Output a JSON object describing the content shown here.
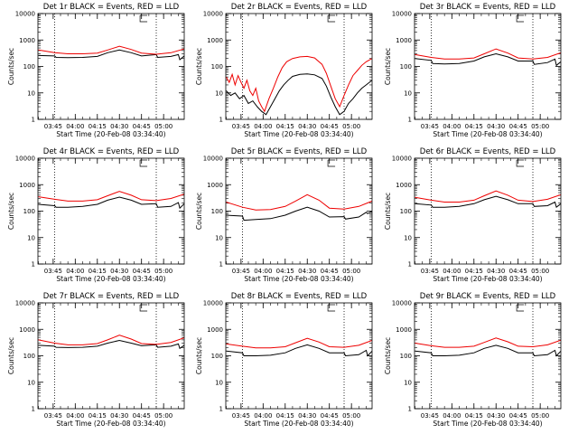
{
  "chart_data": [
    {
      "type": "line",
      "title": "Det 1r BLACK = Events, RED = LLD",
      "xlabel": "Start Time (20-Feb-08 03:34:40)",
      "ylabel": "Counts/sec",
      "y_scale": "log",
      "ylim": [
        1,
        10000
      ],
      "xlim": [
        "03:34:40",
        "05:14:00"
      ],
      "x_ticks": [
        "03:45",
        "04:00",
        "04:15",
        "04:30",
        "04:45",
        "05:00"
      ],
      "y_ticks": [
        "1",
        "10",
        "100",
        "1000",
        "10000"
      ],
      "markers": [
        "03:46",
        "04:55"
      ],
      "series": [
        {
          "color": "#000000",
          "x": [
            "03:35",
            "03:46",
            "03:47",
            "03:55",
            "04:05",
            "04:15",
            "04:22",
            "04:30",
            "04:38",
            "04:45",
            "04:55",
            "04:56",
            "05:05",
            "05:10",
            "05:11",
            "05:14"
          ],
          "y": [
            260,
            250,
            220,
            215,
            220,
            240,
            330,
            420,
            330,
            250,
            280,
            220,
            240,
            280,
            180,
            250
          ]
        },
        {
          "color": "#ee0000",
          "x": [
            "03:35",
            "03:46",
            "03:55",
            "04:05",
            "04:15",
            "04:22",
            "04:30",
            "04:38",
            "04:45",
            "04:55",
            "05:05",
            "05:14"
          ],
          "y": [
            420,
            330,
            300,
            300,
            320,
            420,
            580,
            440,
            320,
            290,
            330,
            460
          ]
        }
      ]
    },
    {
      "type": "line",
      "title": "Det 2r BLACK = Events, RED = LLD",
      "xlabel": "Start Time (20-Feb-08 03:34:40)",
      "ylabel": "Counts/sec",
      "y_scale": "log",
      "ylim": [
        1,
        10000
      ],
      "xlim": [
        "03:34:40",
        "05:14:00"
      ],
      "x_ticks": [
        "03:45",
        "04:00",
        "04:15",
        "04:30",
        "04:45",
        "05:00"
      ],
      "y_ticks": [
        "1",
        "10",
        "100",
        "1000",
        "10000"
      ],
      "markers": [
        "03:46",
        "04:55"
      ],
      "series": [
        {
          "color": "#000000",
          "x": [
            "03:35",
            "03:38",
            "03:41",
            "03:44",
            "03:47",
            "03:50",
            "03:53",
            "03:56",
            "03:59",
            "04:02",
            "04:05",
            "04:08",
            "04:11",
            "04:14",
            "04:17",
            "04:20",
            "04:25",
            "04:30",
            "04:35",
            "04:40",
            "04:43",
            "04:46",
            "04:49",
            "04:52",
            "04:55",
            "04:58",
            "05:01",
            "05:04",
            "05:07",
            "05:10",
            "05:14"
          ],
          "y": [
            12,
            8,
            10,
            6,
            8,
            4,
            5,
            3,
            2,
            1.5,
            3,
            6,
            12,
            20,
            30,
            42,
            50,
            52,
            48,
            35,
            18,
            7,
            3,
            1.5,
            2,
            4,
            6,
            10,
            15,
            20,
            30
          ]
        },
        {
          "color": "#ee0000",
          "x": [
            "03:35",
            "03:37",
            "03:39",
            "03:41",
            "03:43",
            "03:45",
            "03:47",
            "03:49",
            "03:51",
            "03:53",
            "03:55",
            "03:57",
            "03:59",
            "04:01",
            "04:04",
            "04:07",
            "04:10",
            "04:13",
            "04:16",
            "04:20",
            "04:25",
            "04:30",
            "04:35",
            "04:40",
            "04:43",
            "04:46",
            "04:49",
            "04:52",
            "04:55",
            "04:58",
            "05:01",
            "05:04",
            "05:07",
            "05:10",
            "05:14"
          ],
          "y": [
            40,
            25,
            50,
            20,
            45,
            25,
            15,
            30,
            12,
            8,
            15,
            5,
            3,
            2,
            6,
            15,
            40,
            90,
            150,
            200,
            230,
            240,
            210,
            120,
            55,
            18,
            6,
            3,
            8,
            20,
            45,
            70,
            110,
            150,
            200
          ]
        }
      ]
    },
    {
      "type": "line",
      "title": "Det 3r BLACK = Events, RED = LLD",
      "xlabel": "Start Time (20-Feb-08 03:34:40)",
      "ylabel": "Counts/sec",
      "y_scale": "log",
      "ylim": [
        1,
        10000
      ],
      "xlim": [
        "03:34:40",
        "05:14:00"
      ],
      "x_ticks": [
        "03:45",
        "04:00",
        "04:15",
        "04:30",
        "04:45",
        "05:00"
      ],
      "y_ticks": [
        "1",
        "10",
        "100",
        "1000",
        "10000"
      ],
      "markers": [
        "03:46",
        "04:55"
      ],
      "series": [
        {
          "color": "#000000",
          "x": [
            "03:35",
            "03:46",
            "03:47",
            "03:55",
            "04:05",
            "04:15",
            "04:22",
            "04:30",
            "04:38",
            "04:45",
            "04:55",
            "04:56",
            "05:05",
            "05:10",
            "05:11",
            "05:14"
          ],
          "y": [
            200,
            170,
            130,
            125,
            130,
            160,
            230,
            300,
            230,
            160,
            160,
            120,
            140,
            190,
            110,
            150
          ]
        },
        {
          "color": "#ee0000",
          "x": [
            "03:35",
            "03:46",
            "03:55",
            "04:05",
            "04:15",
            "04:22",
            "04:30",
            "04:38",
            "04:45",
            "04:55",
            "05:05",
            "05:14"
          ],
          "y": [
            280,
            220,
            190,
            190,
            210,
            300,
            460,
            320,
            210,
            190,
            220,
            330
          ]
        }
      ]
    },
    {
      "type": "line",
      "title": "Det 4r BLACK = Events, RED = LLD",
      "xlabel": "Start Time (20-Feb-08 03:34:40)",
      "ylabel": "Counts/sec",
      "y_scale": "log",
      "ylim": [
        1,
        10000
      ],
      "xlim": [
        "03:34:40",
        "05:14:00"
      ],
      "x_ticks": [
        "03:45",
        "04:00",
        "04:15",
        "04:30",
        "04:45",
        "05:00"
      ],
      "y_ticks": [
        "1",
        "10",
        "100",
        "1000",
        "10000"
      ],
      "markers": [
        "03:46",
        "04:55"
      ],
      "series": [
        {
          "color": "#000000",
          "x": [
            "03:35",
            "03:46",
            "03:47",
            "03:55",
            "04:05",
            "04:15",
            "04:22",
            "04:30",
            "04:38",
            "04:45",
            "04:55",
            "04:56",
            "05:05",
            "05:10",
            "05:11",
            "05:14"
          ],
          "y": [
            180,
            160,
            140,
            140,
            150,
            180,
            260,
            340,
            260,
            180,
            190,
            140,
            150,
            210,
            130,
            190
          ]
        },
        {
          "color": "#ee0000",
          "x": [
            "03:35",
            "03:46",
            "03:55",
            "04:05",
            "04:15",
            "04:22",
            "04:30",
            "04:38",
            "04:45",
            "04:55",
            "05:05",
            "05:14"
          ],
          "y": [
            350,
            280,
            240,
            240,
            270,
            380,
            560,
            400,
            270,
            250,
            300,
            440
          ]
        }
      ]
    },
    {
      "type": "line",
      "title": "Det 5r BLACK = Events, RED = LLD",
      "xlabel": "Start Time (20-Feb-08 03:34:40)",
      "ylabel": "Counts/sec",
      "y_scale": "log",
      "ylim": [
        1,
        10000
      ],
      "xlim": [
        "03:34:40",
        "05:14:00"
      ],
      "x_ticks": [
        "03:45",
        "04:00",
        "04:15",
        "04:30",
        "04:45",
        "05:00"
      ],
      "y_ticks": [
        "1",
        "10",
        "100",
        "1000",
        "10000"
      ],
      "markers": [
        "03:46",
        "04:55"
      ],
      "series": [
        {
          "color": "#000000",
          "x": [
            "03:35",
            "03:46",
            "03:47",
            "03:55",
            "04:05",
            "04:15",
            "04:22",
            "04:30",
            "04:38",
            "04:45",
            "04:55",
            "04:56",
            "05:05",
            "05:10",
            "05:11",
            "05:14"
          ],
          "y": [
            70,
            65,
            45,
            48,
            52,
            70,
            100,
            140,
            100,
            60,
            62,
            50,
            60,
            90,
            80,
            100
          ]
        },
        {
          "color": "#ee0000",
          "x": [
            "03:35",
            "03:46",
            "03:55",
            "04:05",
            "04:15",
            "04:22",
            "04:30",
            "04:38",
            "04:45",
            "04:55",
            "05:05",
            "05:14"
          ],
          "y": [
            220,
            140,
            110,
            115,
            150,
            240,
            420,
            260,
            130,
            120,
            150,
            240
          ]
        }
      ]
    },
    {
      "type": "line",
      "title": "Det 6r BLACK = Events, RED = LLD",
      "xlabel": "Start Time (20-Feb-08 03:34:40)",
      "ylabel": "Counts/sec",
      "y_scale": "log",
      "ylim": [
        1,
        10000
      ],
      "xlim": [
        "03:34:40",
        "05:14:00"
      ],
      "x_ticks": [
        "03:45",
        "04:00",
        "04:15",
        "04:30",
        "04:45",
        "05:00"
      ],
      "y_ticks": [
        "1",
        "10",
        "100",
        "1000",
        "10000"
      ],
      "markers": [
        "03:46",
        "04:55"
      ],
      "series": [
        {
          "color": "#000000",
          "x": [
            "03:35",
            "03:46",
            "03:47",
            "03:55",
            "04:05",
            "04:15",
            "04:22",
            "04:30",
            "04:38",
            "04:45",
            "04:55",
            "04:56",
            "05:05",
            "05:10",
            "05:11",
            "05:14"
          ],
          "y": [
            190,
            170,
            140,
            140,
            150,
            190,
            270,
            360,
            270,
            190,
            190,
            150,
            160,
            220,
            140,
            190
          ]
        },
        {
          "color": "#ee0000",
          "x": [
            "03:35",
            "03:46",
            "03:55",
            "04:05",
            "04:15",
            "04:22",
            "04:30",
            "04:38",
            "04:45",
            "04:55",
            "05:05",
            "05:14"
          ],
          "y": [
            330,
            260,
            220,
            220,
            260,
            380,
            580,
            400,
            260,
            230,
            280,
            420
          ]
        }
      ]
    },
    {
      "type": "line",
      "title": "Det 7r BLACK = Events, RED = LLD",
      "xlabel": "Start Time (20-Feb-08 03:34:40)",
      "ylabel": "Counts/sec",
      "y_scale": "log",
      "ylim": [
        1,
        10000
      ],
      "xlim": [
        "03:34:40",
        "05:14:00"
      ],
      "x_ticks": [
        "03:45",
        "04:00",
        "04:15",
        "04:30",
        "04:45",
        "05:00"
      ],
      "y_ticks": [
        "1",
        "10",
        "100",
        "1000",
        "10000"
      ],
      "markers": [
        "03:46",
        "04:55"
      ],
      "series": [
        {
          "color": "#000000",
          "x": [
            "03:35",
            "03:46",
            "03:47",
            "03:55",
            "04:05",
            "04:15",
            "04:22",
            "04:30",
            "04:38",
            "04:45",
            "04:55",
            "04:56",
            "05:05",
            "05:10",
            "05:11",
            "05:14"
          ],
          "y": [
            250,
            230,
            210,
            205,
            210,
            230,
            300,
            380,
            300,
            240,
            260,
            210,
            230,
            280,
            190,
            250
          ]
        },
        {
          "color": "#ee0000",
          "x": [
            "03:35",
            "03:46",
            "03:55",
            "04:05",
            "04:15",
            "04:22",
            "04:30",
            "04:38",
            "04:45",
            "04:55",
            "05:05",
            "05:14"
          ],
          "y": [
            400,
            300,
            260,
            260,
            290,
            400,
            600,
            430,
            290,
            270,
            320,
            480
          ]
        }
      ]
    },
    {
      "type": "line",
      "title": "Det 8r BLACK = Events, RED = LLD",
      "xlabel": "Start Time (20-Feb-08 03:34:40)",
      "ylabel": "Counts/sec",
      "y_scale": "log",
      "ylim": [
        1,
        10000
      ],
      "xlim": [
        "03:34:40",
        "05:14:00"
      ],
      "x_ticks": [
        "03:45",
        "04:00",
        "04:15",
        "04:30",
        "04:45",
        "05:00"
      ],
      "y_ticks": [
        "1",
        "10",
        "100",
        "1000",
        "10000"
      ],
      "markers": [
        "03:46",
        "04:55"
      ],
      "series": [
        {
          "color": "#000000",
          "x": [
            "03:35",
            "03:46",
            "03:47",
            "03:55",
            "04:05",
            "04:15",
            "04:22",
            "04:30",
            "04:38",
            "04:45",
            "04:55",
            "04:56",
            "05:05",
            "05:10",
            "05:11",
            "05:14"
          ],
          "y": [
            150,
            130,
            100,
            100,
            105,
            130,
            190,
            260,
            190,
            130,
            130,
            100,
            110,
            160,
            100,
            150
          ]
        },
        {
          "color": "#ee0000",
          "x": [
            "03:35",
            "03:46",
            "03:55",
            "04:05",
            "04:15",
            "04:22",
            "04:30",
            "04:38",
            "04:45",
            "04:55",
            "05:05",
            "05:14"
          ],
          "y": [
            280,
            230,
            200,
            200,
            220,
            310,
            460,
            330,
            220,
            210,
            250,
            380
          ]
        }
      ]
    },
    {
      "type": "line",
      "title": "Det 9r BLACK = Events, RED = LLD",
      "xlabel": "Start Time (20-Feb-08 03:34:40)",
      "ylabel": "Counts/sec",
      "y_scale": "log",
      "ylim": [
        1,
        10000
      ],
      "xlim": [
        "03:34:40",
        "05:14:00"
      ],
      "x_ticks": [
        "03:45",
        "04:00",
        "04:15",
        "04:30",
        "04:45",
        "05:00"
      ],
      "y_ticks": [
        "1",
        "10",
        "100",
        "1000",
        "10000"
      ],
      "markers": [
        "03:46",
        "04:55"
      ],
      "series": [
        {
          "color": "#000000",
          "x": [
            "03:35",
            "03:46",
            "03:47",
            "03:55",
            "04:05",
            "04:15",
            "04:22",
            "04:30",
            "04:38",
            "04:45",
            "04:55",
            "04:56",
            "05:05",
            "05:10",
            "05:11",
            "05:14"
          ],
          "y": [
            150,
            130,
            100,
            100,
            105,
            130,
            190,
            250,
            190,
            130,
            130,
            100,
            110,
            160,
            100,
            150
          ]
        },
        {
          "color": "#ee0000",
          "x": [
            "03:35",
            "03:46",
            "03:55",
            "04:05",
            "04:15",
            "04:22",
            "04:30",
            "04:38",
            "04:45",
            "04:55",
            "05:05",
            "05:14"
          ],
          "y": [
            300,
            240,
            210,
            210,
            230,
            320,
            470,
            340,
            230,
            220,
            260,
            390
          ]
        }
      ]
    }
  ]
}
